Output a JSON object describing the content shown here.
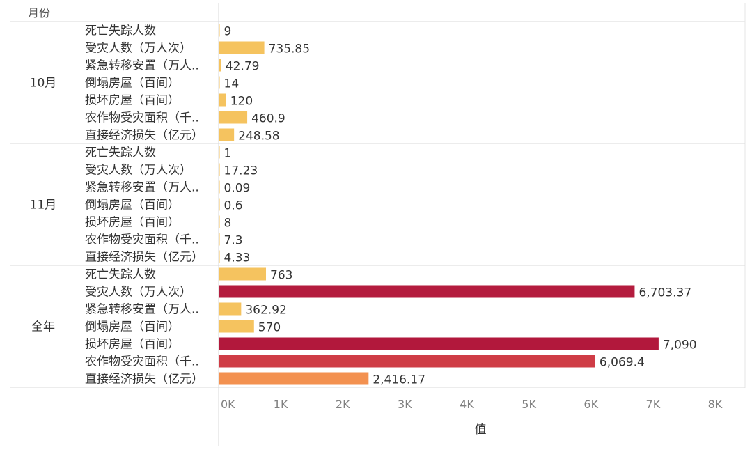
{
  "chart_data": {
    "type": "bar",
    "orientation": "horizontal",
    "row_header": "月份",
    "categories": [
      "死亡失踪人数",
      "受灾人数（万人次）",
      "紧急转移安置（万人..",
      "倒塌房屋（百间）",
      "损坏房屋（百间）",
      "农作物受灾面积（千..",
      "直接经济损失（亿元）"
    ],
    "groups": [
      {
        "name": "10月",
        "values": [
          9,
          735.85,
          42.79,
          14,
          120,
          460.9,
          248.58
        ],
        "labels": [
          "9",
          "735.85",
          "42.79",
          "14",
          "120",
          "460.9",
          "248.58"
        ],
        "colors": [
          "#f5c35f",
          "#f5c35f",
          "#f5c35f",
          "#f5c35f",
          "#f5c35f",
          "#f5c35f",
          "#f5c35f"
        ]
      },
      {
        "name": "11月",
        "values": [
          1,
          17.23,
          0.09,
          0.6,
          8,
          7.3,
          4.33
        ],
        "labels": [
          "1",
          "17.23",
          "0.09",
          "0.6",
          "8",
          "7.3",
          "4.33"
        ],
        "colors": [
          "#f5c35f",
          "#f5c35f",
          "#f5c35f",
          "#f5c35f",
          "#f5c35f",
          "#f5c35f",
          "#f5c35f"
        ]
      },
      {
        "name": "全年",
        "values": [
          763,
          6703.37,
          362.92,
          570,
          7090,
          6069.4,
          2416.17
        ],
        "labels": [
          "763",
          "6,703.37",
          "362.92",
          "570",
          "7,090",
          "6,069.4",
          "2,416.17"
        ],
        "colors": [
          "#f5c35f",
          "#b41c3e",
          "#f5c35f",
          "#f5c35f",
          "#b2183c",
          "#cf3c46",
          "#f39150"
        ]
      }
    ],
    "xlabel": "值",
    "xlim": [
      0,
      8000
    ],
    "x_tick_values": [
      0,
      1000,
      2000,
      3000,
      4000,
      5000,
      6000,
      7000,
      8000
    ],
    "x_tick_labels": [
      "0K",
      "1K",
      "2K",
      "3K",
      "4K",
      "5K",
      "6K",
      "7K",
      "8K"
    ],
    "grid": false
  }
}
